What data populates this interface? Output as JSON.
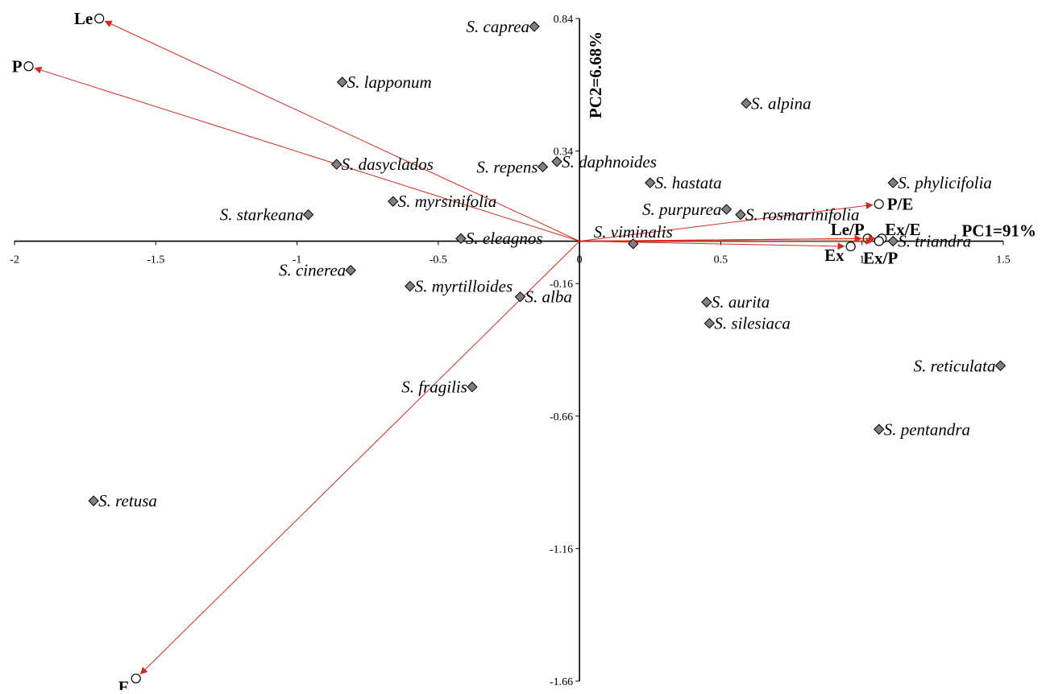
{
  "chart_data": {
    "type": "scatter",
    "x_axis_title": "PC1=91%",
    "y_axis_title": "PC2=6.68%",
    "xlim": [
      -2,
      1.5
    ],
    "ylim": [
      -1.66,
      0.84
    ],
    "x_ticks": [
      {
        "value": -2,
        "label": "-2"
      },
      {
        "value": -1.5,
        "label": "-1.5"
      },
      {
        "value": -1,
        "label": "-1"
      },
      {
        "value": -0.5,
        "label": "-0.5"
      },
      {
        "value": 0,
        "label": "0"
      },
      {
        "value": 0.5,
        "label": "0.5"
      },
      {
        "value": 1,
        "label": "1"
      },
      {
        "value": 1.5,
        "label": "1.5"
      }
    ],
    "y_ticks": [
      {
        "value": 0.84,
        "label": "0.84"
      },
      {
        "value": 0.34,
        "label": "0.34"
      },
      {
        "value": -0.16,
        "label": "-0.16"
      },
      {
        "value": -0.66,
        "label": "-0.66"
      },
      {
        "value": -1.16,
        "label": "-1.16"
      },
      {
        "value": -1.66,
        "label": "-1.66"
      }
    ],
    "species": [
      {
        "name": "S. caprea",
        "x": -0.16,
        "y": 0.81,
        "label_side": "left"
      },
      {
        "name": "S. lapponum",
        "x": -0.84,
        "y": 0.6,
        "label_side": "right"
      },
      {
        "name": "S. alpina",
        "x": 0.59,
        "y": 0.52,
        "label_side": "right"
      },
      {
        "name": "S. dasyclados",
        "x": -0.86,
        "y": 0.29,
        "label_side": "right"
      },
      {
        "name": "S. repens",
        "x": -0.13,
        "y": 0.28,
        "label_side": "left"
      },
      {
        "name": "S. daphnoides",
        "x": -0.08,
        "y": 0.3,
        "label_side": "right"
      },
      {
        "name": "S. hastata",
        "x": 0.25,
        "y": 0.22,
        "label_side": "right"
      },
      {
        "name": "S. phylicifolia",
        "x": 1.11,
        "y": 0.22,
        "label_side": "right"
      },
      {
        "name": "S. myrsinifolia",
        "x": -0.66,
        "y": 0.15,
        "label_side": "right"
      },
      {
        "name": "S. starkeana",
        "x": -0.96,
        "y": 0.1,
        "label_side": "left"
      },
      {
        "name": "S. purpurea",
        "x": 0.52,
        "y": 0.12,
        "label_side": "left"
      },
      {
        "name": "S. rosmarinifolia",
        "x": 0.57,
        "y": 0.1,
        "label_side": "right"
      },
      {
        "name": "S. eleagnos",
        "x": -0.42,
        "y": 0.01,
        "label_side": "right"
      },
      {
        "name": "S. viminalis",
        "x": 0.19,
        "y": -0.01,
        "label_side": "above"
      },
      {
        "name": "S. triandra",
        "x": 1.11,
        "y": 0.0,
        "label_side": "right"
      },
      {
        "name": "S. cinerea",
        "x": -0.81,
        "y": -0.11,
        "label_side": "left"
      },
      {
        "name": "S. myrtilloides",
        "x": -0.6,
        "y": -0.17,
        "label_side": "right"
      },
      {
        "name": "S. alba",
        "x": -0.21,
        "y": -0.21,
        "label_side": "right"
      },
      {
        "name": "S. aurita",
        "x": 0.45,
        "y": -0.23,
        "label_side": "right"
      },
      {
        "name": "S. silesiaca",
        "x": 0.46,
        "y": -0.31,
        "label_side": "right"
      },
      {
        "name": "S. reticulata",
        "x": 1.49,
        "y": -0.47,
        "label_side": "left"
      },
      {
        "name": "S. fragilis",
        "x": -0.38,
        "y": -0.55,
        "label_side": "left"
      },
      {
        "name": "S. pentandra",
        "x": 1.06,
        "y": -0.71,
        "label_side": "right"
      },
      {
        "name": "S. retusa",
        "x": -1.72,
        "y": -0.98,
        "label_side": "right"
      }
    ],
    "variables": [
      {
        "name": "Le",
        "x": -1.7,
        "y": 0.84,
        "label_side": "left"
      },
      {
        "name": "P",
        "x": -1.95,
        "y": 0.66,
        "label_side": "left"
      },
      {
        "name": "P/E",
        "x": 1.06,
        "y": 0.14,
        "label_side": "right"
      },
      {
        "name": "Le/P",
        "x": 1.02,
        "y": 0.01,
        "label_side": "left-above"
      },
      {
        "name": "Ex/E",
        "x": 1.07,
        "y": 0.01,
        "label_side": "right-above"
      },
      {
        "name": "Ex",
        "x": 0.96,
        "y": -0.02,
        "label_side": "left-below"
      },
      {
        "name": "Ex/P",
        "x": 1.06,
        "y": 0.0,
        "label_side": "below"
      },
      {
        "name": "E",
        "x": -1.57,
        "y": -1.65,
        "label_side": "left-below"
      }
    ],
    "colors": {
      "vector": "#d42a1e",
      "marker_fill": "#808080",
      "marker_stroke": "#000000",
      "axis": "#000000"
    }
  }
}
